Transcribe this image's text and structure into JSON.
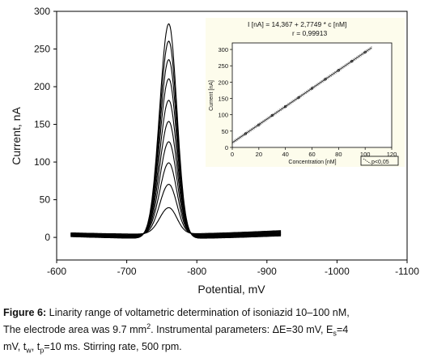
{
  "chart_data": [
    {
      "type": "line",
      "xlabel": "Potential, mV",
      "ylabel": "Current, nA",
      "xlim": [
        -600,
        -1100
      ],
      "ylim": [
        -30,
        300
      ],
      "xticks": [
        "-600",
        "-700",
        "-800",
        "-900",
        "-1000",
        "-1100"
      ],
      "yticks": [
        "0",
        "50",
        "100",
        "150",
        "200",
        "250",
        "300"
      ],
      "x_range_data": [
        -620,
        -920
      ],
      "peak_potential": -760,
      "peak_heights": [
        36,
        68,
        97,
        126,
        153,
        182,
        211,
        237,
        262,
        286
      ],
      "baseline_start": [
        6,
        5,
        5,
        4,
        4,
        3,
        3,
        2,
        2,
        1
      ],
      "baseline_end": [
        9,
        8,
        7,
        6,
        6,
        5,
        4,
        4,
        3,
        2
      ]
    },
    {
      "type": "scatter",
      "equation_line1": "I [nA]   = 14,367 + 2,7749 * c [nM]",
      "equation_line2": "r =   0,99913",
      "xlabel": "Concentration [nM]",
      "ylabel": "Current [nA]",
      "xlim": [
        0,
        120
      ],
      "ylim": [
        0,
        320
      ],
      "xticks": [
        "0",
        "20",
        "40",
        "60",
        "80",
        "100",
        "120"
      ],
      "yticks": [
        "0",
        "50",
        "100",
        "150",
        "200",
        "250",
        "300"
      ],
      "intercept": 14.367,
      "slope": 2.7749,
      "points": [
        [
          10,
          42
        ],
        [
          20,
          69
        ],
        [
          30,
          98
        ],
        [
          40,
          125
        ],
        [
          50,
          153
        ],
        [
          60,
          181
        ],
        [
          70,
          209
        ],
        [
          80,
          236
        ],
        [
          90,
          264
        ],
        [
          100,
          292
        ]
      ],
      "legend_label": "p<0,05",
      "colors": {
        "background": "#fdfcec",
        "line": "#222222",
        "band": "#666666"
      }
    }
  ],
  "caption": {
    "label": "Figure 6:",
    "line1_rest": " Linarity range of voltametric determination of isoniazid 10–100 nM,",
    "line2a": "The electrode area was 9.7 mm",
    "line2_sup": "2",
    "line2b": ". Instrumental parameters: ΔE=30 mV, E",
    "line2_sub": "s",
    "line2c": "=4",
    "line3a": "mV, t",
    "line3_sub1": "w",
    "line3b": ", t",
    "line3_sub2": "p",
    "line3c": "=10 ms. Stirring rate, 500 rpm."
  }
}
